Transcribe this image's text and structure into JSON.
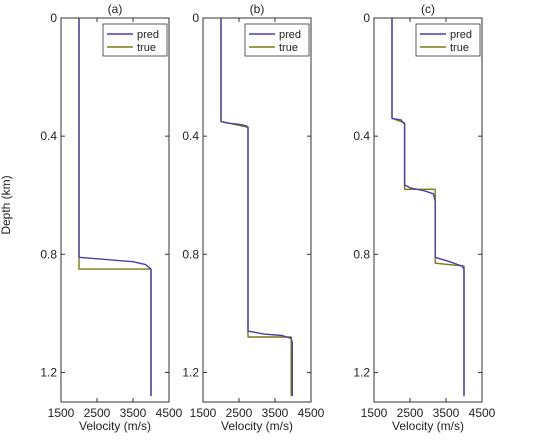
{
  "figure": {
    "ylabel": "Depth (km)",
    "xlabel": "Velocity (m/s)",
    "x_ticks": [
      "1500",
      "2500",
      "3500",
      "4500"
    ],
    "y_ticks": [
      "0",
      "0.4",
      "0.8",
      "1.2"
    ]
  },
  "colors": {
    "pred": "#4b3fa8",
    "true": "#7b7a10",
    "axis": "#333333"
  },
  "chart_data": [
    {
      "type": "line",
      "title": "(a)",
      "xlabel": "Velocity (m/s)",
      "ylabel": "Depth (km)",
      "xlim": [
        1500,
        4500
      ],
      "ylim": [
        0,
        1.3
      ],
      "y_reversed": true,
      "legend_position": "top-right",
      "series": [
        {
          "name": "pred",
          "points": [
            [
              2000,
              0
            ],
            [
              2000,
              0.81
            ],
            [
              3500,
              0.825
            ],
            [
              3850,
              0.835
            ],
            [
              3950,
              0.845
            ],
            [
              4000,
              0.85
            ],
            [
              4000,
              1.28
            ]
          ]
        },
        {
          "name": "true",
          "points": [
            [
              2000,
              0
            ],
            [
              2000,
              0.85
            ],
            [
              4000,
              0.85
            ],
            [
              4000,
              1.28
            ]
          ]
        }
      ]
    },
    {
      "type": "line",
      "title": "(b)",
      "xlabel": "Velocity (m/s)",
      "ylabel": "",
      "xlim": [
        1500,
        4500
      ],
      "ylim": [
        0,
        1.3
      ],
      "y_reversed": true,
      "legend_position": "top-right",
      "series": [
        {
          "name": "pred",
          "points": [
            [
              2000,
              0
            ],
            [
              2000,
              0.35
            ],
            [
              2150,
              0.355
            ],
            [
              2500,
              0.36
            ],
            [
              2700,
              0.365
            ],
            [
              2750,
              0.37
            ],
            [
              2750,
              1.06
            ],
            [
              3200,
              1.07
            ],
            [
              3700,
              1.075
            ],
            [
              3950,
              1.085
            ],
            [
              3980,
              1.1
            ],
            [
              3980,
              1.28
            ]
          ]
        },
        {
          "name": "true",
          "points": [
            [
              2000,
              0
            ],
            [
              2000,
              0.35
            ],
            [
              2750,
              0.37
            ],
            [
              2750,
              1.08
            ],
            [
              3950,
              1.08
            ],
            [
              3950,
              1.28
            ]
          ]
        }
      ]
    },
    {
      "type": "line",
      "title": "(c)",
      "xlabel": "Velocity (m/s)",
      "ylabel": "",
      "xlim": [
        1500,
        4500
      ],
      "ylim": [
        0,
        1.3
      ],
      "y_reversed": true,
      "legend_position": "top-right",
      "series": [
        {
          "name": "pred",
          "points": [
            [
              2000,
              0
            ],
            [
              2000,
              0.34
            ],
            [
              2250,
              0.345
            ],
            [
              2350,
              0.36
            ],
            [
              2350,
              0.565
            ],
            [
              2500,
              0.575
            ],
            [
              2900,
              0.585
            ],
            [
              3150,
              0.595
            ],
            [
              3200,
              0.62
            ],
            [
              3200,
              0.81
            ],
            [
              3600,
              0.825
            ],
            [
              3950,
              0.84
            ],
            [
              4000,
              0.85
            ],
            [
              4000,
              1.28
            ]
          ]
        },
        {
          "name": "true",
          "points": [
            [
              2000,
              0
            ],
            [
              2000,
              0.34
            ],
            [
              2350,
              0.355
            ],
            [
              2350,
              0.58
            ],
            [
              3200,
              0.58
            ],
            [
              3200,
              0.83
            ],
            [
              4000,
              0.84
            ],
            [
              4000,
              1.28
            ]
          ]
        }
      ]
    }
  ]
}
